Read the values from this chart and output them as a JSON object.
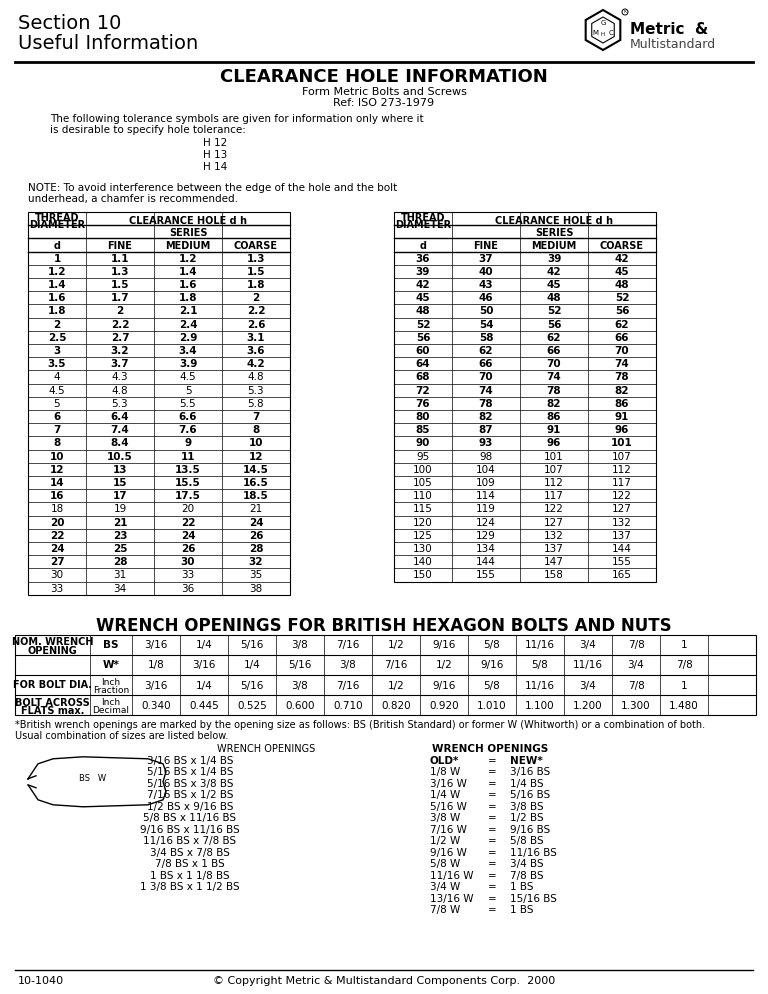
{
  "page_title_line1": "Section 10",
  "page_title_line2": "Useful Information",
  "brand_text1": "Metric  &",
  "brand_text2": "Multistandard",
  "main_title": "CLEARANCE HOLE INFORMATION",
  "subtitle1": "Form Metric Bolts and Screws",
  "subtitle2": "Ref: ISO 273-1979",
  "tolerance_intro1": "The following tolerance symbols are given for information only where it",
  "tolerance_intro2": "is desirable to specify hole tolerance:",
  "tolerance_list": [
    "H 12",
    "H 13",
    "H 14"
  ],
  "note_text1": "NOTE: To avoid interference between the edge of the hole and the bolt",
  "note_text2": "underhead, a chamfer is recommended.",
  "table1_data": [
    [
      "1",
      "1.1",
      "1.2",
      "1.3"
    ],
    [
      "1.2",
      "1.3",
      "1.4",
      "1.5"
    ],
    [
      "1.4",
      "1.5",
      "1.6",
      "1.8"
    ],
    [
      "1.6",
      "1.7",
      "1.8",
      "2"
    ],
    [
      "1.8",
      "2",
      "2.1",
      "2.2"
    ],
    [
      "2",
      "2.2",
      "2.4",
      "2.6"
    ],
    [
      "2.5",
      "2.7",
      "2.9",
      "3.1"
    ],
    [
      "3",
      "3.2",
      "3.4",
      "3.6"
    ],
    [
      "3.5",
      "3.7",
      "3.9",
      "4.2"
    ],
    [
      "4",
      "4.3",
      "4.5",
      "4.8"
    ],
    [
      "4.5",
      "4.8",
      "5",
      "5.3"
    ],
    [
      "5",
      "5.3",
      "5.5",
      "5.8"
    ],
    [
      "6",
      "6.4",
      "6.6",
      "7"
    ],
    [
      "7",
      "7.4",
      "7.6",
      "8"
    ],
    [
      "8",
      "8.4",
      "9",
      "10"
    ],
    [
      "10",
      "10.5",
      "11",
      "12"
    ],
    [
      "12",
      "13",
      "13.5",
      "14.5"
    ],
    [
      "14",
      "15",
      "15.5",
      "16.5"
    ],
    [
      "16",
      "17",
      "17.5",
      "18.5"
    ],
    [
      "18",
      "19",
      "20",
      "21"
    ],
    [
      "20",
      "21",
      "22",
      "24"
    ],
    [
      "22",
      "23",
      "24",
      "26"
    ],
    [
      "24",
      "25",
      "26",
      "28"
    ],
    [
      "27",
      "28",
      "30",
      "32"
    ],
    [
      "30",
      "31",
      "33",
      "35"
    ],
    [
      "33",
      "34",
      "36",
      "38"
    ]
  ],
  "table1_bold": [
    "1",
    "1.2",
    "1.4",
    "1.6",
    "1.8",
    "2",
    "2.5",
    "3",
    "3.5",
    "6",
    "7",
    "8",
    "10",
    "12",
    "14",
    "16",
    "20",
    "22",
    "24",
    "27"
  ],
  "table2_data": [
    [
      "36",
      "37",
      "39",
      "42"
    ],
    [
      "39",
      "40",
      "42",
      "45"
    ],
    [
      "42",
      "43",
      "45",
      "48"
    ],
    [
      "45",
      "46",
      "48",
      "52"
    ],
    [
      "48",
      "50",
      "52",
      "56"
    ],
    [
      "52",
      "54",
      "56",
      "62"
    ],
    [
      "56",
      "58",
      "62",
      "66"
    ],
    [
      "60",
      "62",
      "66",
      "70"
    ],
    [
      "64",
      "66",
      "70",
      "74"
    ],
    [
      "68",
      "70",
      "74",
      "78"
    ],
    [
      "72",
      "74",
      "78",
      "82"
    ],
    [
      "76",
      "78",
      "82",
      "86"
    ],
    [
      "80",
      "82",
      "86",
      "91"
    ],
    [
      "85",
      "87",
      "91",
      "96"
    ],
    [
      "90",
      "93",
      "96",
      "101"
    ],
    [
      "95",
      "98",
      "101",
      "107"
    ],
    [
      "100",
      "104",
      "107",
      "112"
    ],
    [
      "105",
      "109",
      "112",
      "117"
    ],
    [
      "110",
      "114",
      "117",
      "122"
    ],
    [
      "115",
      "119",
      "122",
      "127"
    ],
    [
      "120",
      "124",
      "127",
      "132"
    ],
    [
      "125",
      "129",
      "132",
      "137"
    ],
    [
      "130",
      "134",
      "137",
      "144"
    ],
    [
      "140",
      "144",
      "147",
      "155"
    ],
    [
      "150",
      "155",
      "158",
      "165"
    ]
  ],
  "table2_bold": [
    "36",
    "39",
    "42",
    "45",
    "48",
    "52",
    "56",
    "60",
    "64",
    "68",
    "72",
    "76",
    "80",
    "85",
    "90"
  ],
  "wrench_title": "WRENCH OPENINGS FOR BRITISH HEXAGON BOLTS AND NUTS",
  "wrench_row1": [
    "NOM. WRENCH",
    "BS",
    "3/16",
    "1/4",
    "5/16",
    "3/8",
    "7/16",
    "1/2",
    "9/16",
    "5/8",
    "11/16",
    "3/4",
    "7/8",
    "1"
  ],
  "wrench_row2": [
    "OPENING",
    "W*",
    "1/8",
    "3/16",
    "1/4",
    "5/16",
    "3/8",
    "7/16",
    "1/2",
    "9/16",
    "5/8",
    "11/16",
    "3/4",
    "7/8"
  ],
  "wrench_bolt_label": "FOR BOLT DIA.",
  "wrench_bolt_unit1": "Inch",
  "wrench_bolt_unit2": "Fraction",
  "wrench_bolt_frac": [
    "3/16",
    "1/4",
    "5/16",
    "3/8",
    "7/16",
    "1/2",
    "9/16",
    "5/8",
    "11/16",
    "3/4",
    "7/8",
    "1"
  ],
  "wrench_flats_label1": "BOLT ACROSS",
  "wrench_flats_label2": "FLATS max.",
  "wrench_flats_unit1": "Inch",
  "wrench_flats_unit2": "Decimal",
  "wrench_bolt_dec": [
    "0.340",
    "0.445",
    "0.525",
    "0.600",
    "0.710",
    "0.820",
    "0.920",
    "1.010",
    "1.100",
    "1.200",
    "1.300",
    "1.480"
  ],
  "footnote1": "*British wrench openings are marked by the opening size as follows: BS (British Standard) or former W (Whitworth) or a combination of both.",
  "footnote2": "Usual combination of sizes are listed below.",
  "wrench_combos": [
    "3/16 BS x 1/4 BS",
    "5/16 BS x 1/4 BS",
    "5/16 BS x 3/8 BS",
    "7/16 BS x 1/2 BS",
    "1/2 BS x 9/16 BS",
    "5/8 BS x 11/16 BS",
    "9/16 BS x 11/16 BS",
    "11/16 BS x 7/8 BS",
    "3/4 BS x 7/8 BS",
    "7/8 BS x 1 BS",
    "1 BS x 1 1/8 BS",
    "1 3/8 BS x 1 1/2 BS"
  ],
  "wrench_old_header": "OLD*",
  "wrench_new_header": "NEW*",
  "wrench_old": [
    "1/8 W",
    "3/16 W",
    "1/4 W",
    "5/16 W",
    "3/8 W",
    "7/16 W",
    "1/2 W",
    "9/16 W",
    "5/8 W",
    "11/16 W",
    "3/4 W",
    "13/16 W",
    "7/8 W"
  ],
  "wrench_new": [
    "3/16 BS",
    "1/4 BS",
    "5/16 BS",
    "3/8 BS",
    "1/2 BS",
    "9/16 BS",
    "5/8 BS",
    "11/16 BS",
    "3/4 BS",
    "7/8 BS",
    "1 BS",
    "15/16 BS",
    "1 BS"
  ],
  "footer_left": "10-1040",
  "footer_center": "© Copyright Metric & Multistandard Components Corp.  2000"
}
